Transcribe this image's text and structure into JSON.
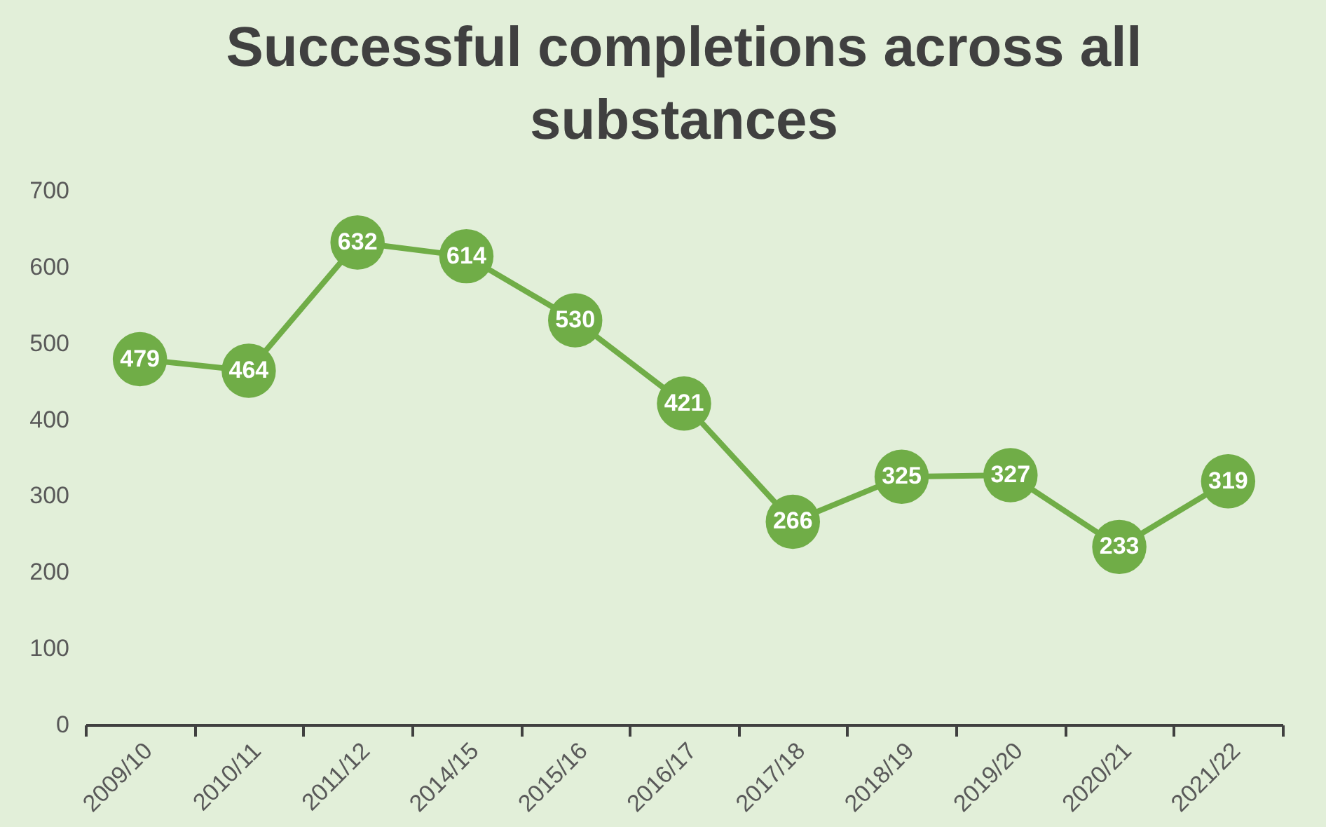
{
  "chart_data": {
    "type": "line",
    "title": "Successful completions across all substances",
    "categories": [
      "2009/10",
      "2010/11",
      "2011/12",
      "2014/15",
      "2015/16",
      "2016/17",
      "2017/18",
      "2018/19",
      "2019/20",
      "2020/21",
      "2021/22"
    ],
    "series": [
      {
        "color": "#70ad47",
        "values": [
          479,
          464,
          632,
          614,
          530,
          421,
          266,
          325,
          327,
          233,
          319
        ]
      }
    ],
    "ylim": [
      0,
      700
    ],
    "yticks": [
      0,
      100,
      200,
      300,
      400,
      500,
      600,
      700
    ],
    "marker": "circle",
    "data_labels": true
  }
}
